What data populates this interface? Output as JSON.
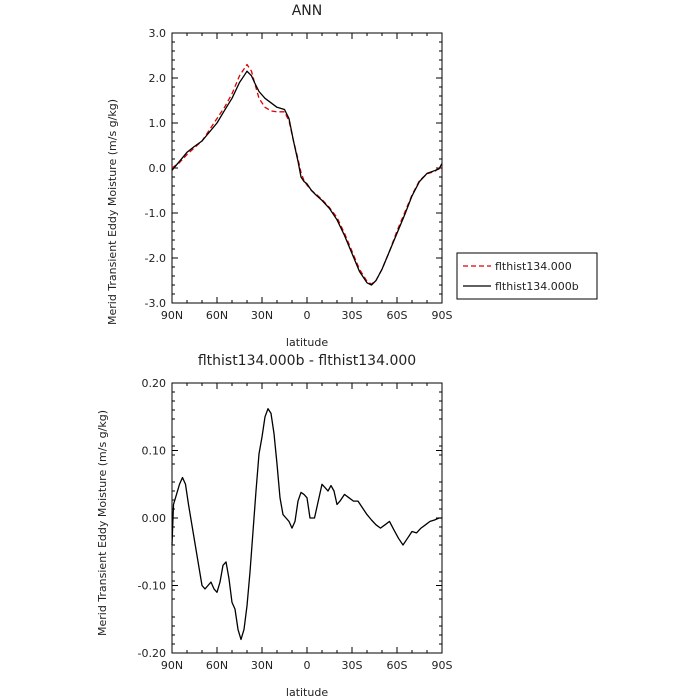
{
  "chart_data": [
    {
      "type": "line",
      "title": "ANN",
      "xlabel": "latitude",
      "ylabel": "Merid Transient Eddy Moisture (m/s g/kg)",
      "x_ticks": [
        {
          "value": 90,
          "label": "90N"
        },
        {
          "value": 60,
          "label": "60N"
        },
        {
          "value": 30,
          "label": "30N"
        },
        {
          "value": 0,
          "label": "0"
        },
        {
          "value": -30,
          "label": "30S"
        },
        {
          "value": -60,
          "label": "60S"
        },
        {
          "value": -90,
          "label": "90S"
        }
      ],
      "y_ticks": [
        {
          "value": 3,
          "label": "3.0"
        },
        {
          "value": 2,
          "label": "2.0"
        },
        {
          "value": 1,
          "label": "1.0"
        },
        {
          "value": 0,
          "label": "0.0"
        },
        {
          "value": -1,
          "label": "-1.0"
        },
        {
          "value": -2,
          "label": "-2.0"
        },
        {
          "value": -3,
          "label": "-3.0"
        }
      ],
      "xlim": [
        90,
        -90
      ],
      "ylim": [
        -3,
        3
      ],
      "legend_position": "right",
      "series": [
        {
          "name": "flthist134.000",
          "color": "#e00000",
          "dash": "dashed",
          "points": [
            [
              90,
              0.0
            ],
            [
              85,
              0.12
            ],
            [
              80,
              0.3
            ],
            [
              75,
              0.45
            ],
            [
              70,
              0.6
            ],
            [
              65,
              0.85
            ],
            [
              60,
              1.1
            ],
            [
              55,
              1.35
            ],
            [
              50,
              1.65
            ],
            [
              45,
              2.05
            ],
            [
              40,
              2.3
            ],
            [
              37,
              2.15
            ],
            [
              35,
              1.9
            ],
            [
              32,
              1.55
            ],
            [
              28,
              1.35
            ],
            [
              24,
              1.27
            ],
            [
              20,
              1.25
            ],
            [
              15,
              1.25
            ],
            [
              12,
              1.05
            ],
            [
              9,
              0.6
            ],
            [
              6,
              0.2
            ],
            [
              4,
              -0.1
            ],
            [
              2,
              -0.28
            ],
            [
              0,
              -0.38
            ],
            [
              -3,
              -0.5
            ],
            [
              -6,
              -0.58
            ],
            [
              -10,
              -0.7
            ],
            [
              -15,
              -0.88
            ],
            [
              -20,
              -1.1
            ],
            [
              -25,
              -1.45
            ],
            [
              -30,
              -1.85
            ],
            [
              -35,
              -2.25
            ],
            [
              -40,
              -2.52
            ],
            [
              -43,
              -2.58
            ],
            [
              -46,
              -2.5
            ],
            [
              -50,
              -2.25
            ],
            [
              -55,
              -1.85
            ],
            [
              -60,
              -1.4
            ],
            [
              -65,
              -1.0
            ],
            [
              -70,
              -0.6
            ],
            [
              -75,
              -0.28
            ],
            [
              -80,
              -0.13
            ],
            [
              -85,
              -0.08
            ],
            [
              -88,
              0.0
            ],
            [
              -90,
              0.05
            ]
          ]
        },
        {
          "name": "flthist134.000b",
          "color": "#000000",
          "dash": "solid",
          "points": [
            [
              90,
              -0.05
            ],
            [
              85,
              0.15
            ],
            [
              80,
              0.35
            ],
            [
              75,
              0.48
            ],
            [
              70,
              0.6
            ],
            [
              65,
              0.8
            ],
            [
              60,
              1.0
            ],
            [
              55,
              1.28
            ],
            [
              50,
              1.55
            ],
            [
              45,
              1.9
            ],
            [
              42,
              2.05
            ],
            [
              40,
              2.15
            ],
            [
              37,
              2.05
            ],
            [
              35,
              1.9
            ],
            [
              32,
              1.7
            ],
            [
              28,
              1.55
            ],
            [
              24,
              1.45
            ],
            [
              20,
              1.35
            ],
            [
              15,
              1.3
            ],
            [
              12,
              1.1
            ],
            [
              9,
              0.6
            ],
            [
              6,
              0.15
            ],
            [
              4,
              -0.2
            ],
            [
              2,
              -0.3
            ],
            [
              0,
              -0.35
            ],
            [
              -3,
              -0.5
            ],
            [
              -6,
              -0.6
            ],
            [
              -10,
              -0.72
            ],
            [
              -15,
              -0.9
            ],
            [
              -20,
              -1.15
            ],
            [
              -25,
              -1.5
            ],
            [
              -30,
              -1.9
            ],
            [
              -35,
              -2.3
            ],
            [
              -40,
              -2.55
            ],
            [
              -43,
              -2.6
            ],
            [
              -46,
              -2.5
            ],
            [
              -50,
              -2.25
            ],
            [
              -55,
              -1.85
            ],
            [
              -60,
              -1.45
            ],
            [
              -65,
              -1.05
            ],
            [
              -70,
              -0.62
            ],
            [
              -75,
              -0.3
            ],
            [
              -80,
              -0.12
            ],
            [
              -85,
              -0.06
            ],
            [
              -88,
              -0.02
            ],
            [
              -90,
              0.1
            ]
          ]
        }
      ]
    },
    {
      "type": "line",
      "title": "flthist134.000b - flthist134.000",
      "xlabel": "latitude",
      "ylabel": "Merid Transient Eddy Moisture (m/s g/kg)",
      "x_ticks": [
        {
          "value": 90,
          "label": "90N"
        },
        {
          "value": 60,
          "label": "60N"
        },
        {
          "value": 30,
          "label": "30N"
        },
        {
          "value": 0,
          "label": "0"
        },
        {
          "value": -30,
          "label": "30S"
        },
        {
          "value": -60,
          "label": "60S"
        },
        {
          "value": -90,
          "label": "90S"
        }
      ],
      "y_ticks": [
        {
          "value": 0.2,
          "label": "0.20"
        },
        {
          "value": 0.1,
          "label": "0.10"
        },
        {
          "value": 0.0,
          "label": "0.00"
        },
        {
          "value": -0.1,
          "label": "-0.10"
        },
        {
          "value": -0.2,
          "label": "-0.20"
        }
      ],
      "xlim": [
        90,
        -90
      ],
      "ylim": [
        -0.2,
        0.2
      ],
      "series": [
        {
          "color": "#000000",
          "dash": "solid",
          "points": [
            [
              90,
              -0.04
            ],
            [
              89,
              0.02
            ],
            [
              87,
              0.035
            ],
            [
              85,
              0.05
            ],
            [
              83,
              0.06
            ],
            [
              81,
              0.05
            ],
            [
              79,
              0.02
            ],
            [
              76,
              -0.02
            ],
            [
              73,
              -0.06
            ],
            [
              70,
              -0.1
            ],
            [
              68,
              -0.105
            ],
            [
              66,
              -0.1
            ],
            [
              64,
              -0.095
            ],
            [
              62,
              -0.105
            ],
            [
              60,
              -0.11
            ],
            [
              58,
              -0.095
            ],
            [
              56,
              -0.07
            ],
            [
              54,
              -0.065
            ],
            [
              52,
              -0.09
            ],
            [
              50,
              -0.125
            ],
            [
              48,
              -0.135
            ],
            [
              46,
              -0.165
            ],
            [
              44,
              -0.18
            ],
            [
              42,
              -0.165
            ],
            [
              40,
              -0.13
            ],
            [
              38,
              -0.08
            ],
            [
              36,
              -0.02
            ],
            [
              34,
              0.04
            ],
            [
              32,
              0.095
            ],
            [
              30,
              0.12
            ],
            [
              28,
              0.15
            ],
            [
              26,
              0.162
            ],
            [
              24,
              0.155
            ],
            [
              22,
              0.125
            ],
            [
              20,
              0.08
            ],
            [
              18,
              0.03
            ],
            [
              16,
              0.005
            ],
            [
              14,
              0.0
            ],
            [
              12,
              -0.005
            ],
            [
              10,
              -0.015
            ],
            [
              8,
              -0.005
            ],
            [
              6,
              0.025
            ],
            [
              4,
              0.038
            ],
            [
              2,
              0.035
            ],
            [
              0,
              0.03
            ],
            [
              -2,
              0.0
            ],
            [
              -5,
              0.0
            ],
            [
              -7,
              0.02
            ],
            [
              -9,
              0.04
            ],
            [
              -10,
              0.05
            ],
            [
              -12,
              0.045
            ],
            [
              -14,
              0.04
            ],
            [
              -16,
              0.048
            ],
            [
              -18,
              0.04
            ],
            [
              -20,
              0.02
            ],
            [
              -22,
              0.025
            ],
            [
              -25,
              0.035
            ],
            [
              -28,
              0.03
            ],
            [
              -31,
              0.025
            ],
            [
              -34,
              0.025
            ],
            [
              -37,
              0.015
            ],
            [
              -40,
              0.005
            ],
            [
              -43,
              -0.003
            ],
            [
              -46,
              -0.01
            ],
            [
              -49,
              -0.015
            ],
            [
              -52,
              -0.01
            ],
            [
              -55,
              -0.005
            ],
            [
              -58,
              -0.018
            ],
            [
              -61,
              -0.03
            ],
            [
              -64,
              -0.04
            ],
            [
              -67,
              -0.03
            ],
            [
              -70,
              -0.02
            ],
            [
              -73,
              -0.022
            ],
            [
              -76,
              -0.015
            ],
            [
              -79,
              -0.01
            ],
            [
              -82,
              -0.005
            ],
            [
              -85,
              -0.003
            ],
            [
              -88,
              0.0
            ],
            [
              -90,
              0.0
            ]
          ]
        }
      ]
    }
  ]
}
